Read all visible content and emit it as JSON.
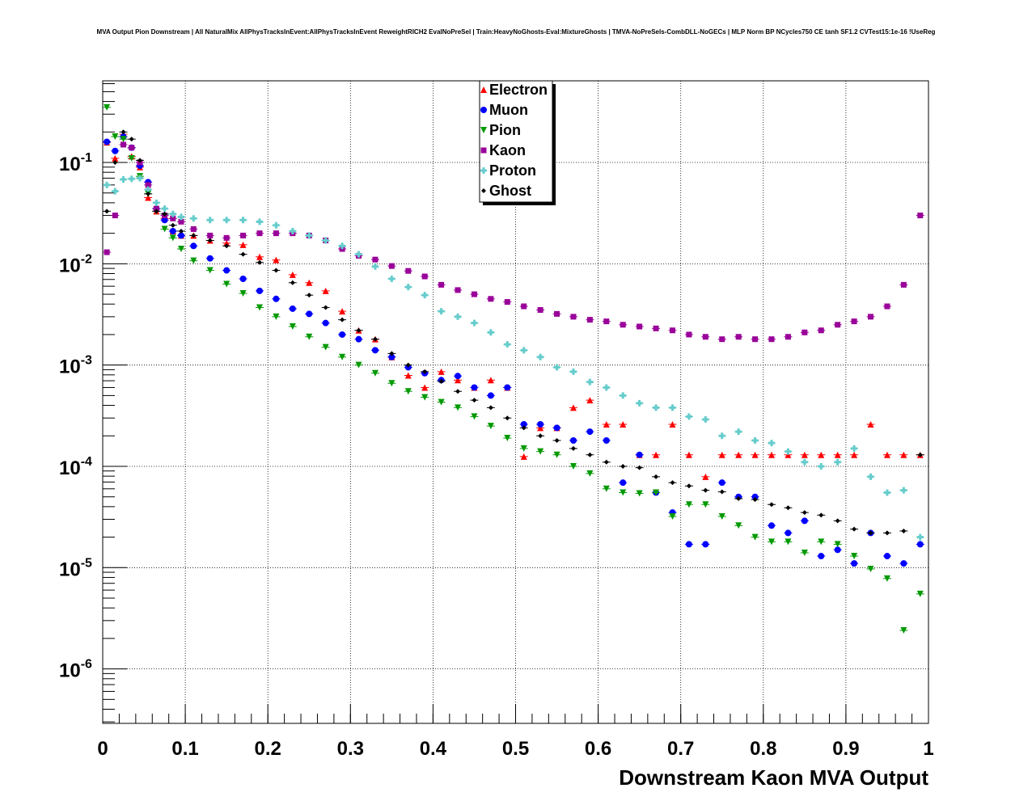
{
  "chart_data": {
    "type": "scatter",
    "title": "MVA Output Pion Downstream | All NaturalMix AllPhysTracksInEvent:AllPhysTracksInEvent ReweightRICH2 EvalNoPreSel | Train:HeavyNoGhosts-Eval:MixtureGhosts | TMVA-NoPreSels-CombDLL-NoGECs | MLP Norm BP NCycles750 CE tanh SF1.2 CVTest15:1e-16 !UseReg",
    "xlabel": "Downstream Kaon MVA Output",
    "ylabel": "",
    "xlim": [
      0,
      1
    ],
    "ylim": [
      2.9e-07,
      0.64
    ],
    "yscale": "log",
    "grid": true,
    "legend_position": "top-center",
    "x_ticks": [
      "0",
      "0.1",
      "0.2",
      "0.3",
      "0.4",
      "0.5",
      "0.6",
      "0.7",
      "0.8",
      "0.9",
      "1"
    ],
    "y_ticks": [
      {
        "base": "10",
        "exp": "-1"
      },
      {
        "base": "10",
        "exp": "-2"
      },
      {
        "base": "10",
        "exp": "-3"
      },
      {
        "base": "10",
        "exp": "-4"
      },
      {
        "base": "10",
        "exp": "-5"
      },
      {
        "base": "10",
        "exp": "-6"
      }
    ],
    "x": [
      0.005,
      0.015,
      0.025,
      0.035,
      0.045,
      0.055,
      0.065,
      0.075,
      0.085,
      0.095,
      0.11,
      0.13,
      0.15,
      0.17,
      0.19,
      0.21,
      0.23,
      0.25,
      0.27,
      0.29,
      0.31,
      0.33,
      0.35,
      0.37,
      0.39,
      0.41,
      0.43,
      0.45,
      0.47,
      0.49,
      0.51,
      0.53,
      0.55,
      0.57,
      0.59,
      0.61,
      0.63,
      0.65,
      0.67,
      0.69,
      0.71,
      0.73,
      0.75,
      0.77,
      0.79,
      0.81,
      0.83,
      0.85,
      0.87,
      0.89,
      0.91,
      0.93,
      0.95,
      0.97,
      0.99
    ],
    "series": [
      {
        "name": "Electron",
        "color": "#ff0000",
        "marker": "triangle-up",
        "values": [
          0.158,
          0.11,
          0.19,
          0.115,
          0.09,
          0.045,
          0.033,
          0.028,
          0.021,
          0.019,
          0.019,
          0.017,
          0.016,
          0.0154,
          0.0117,
          0.0109,
          0.0078,
          0.0065,
          0.0054,
          0.0034,
          0.0022,
          0.0018,
          0.0012,
          0.00079,
          0.0006,
          0.00086,
          0.00071,
          0.0006,
          0.00071,
          0.0006,
          0.000125,
          0.00024,
          0.00024,
          0.00038,
          0.00045,
          0.00026,
          0.00026,
          0.00013,
          0.00013,
          0.00026,
          0.00013,
          7.9e-05,
          0.00013,
          0.00013,
          0.00013,
          0.00013,
          0.00013,
          0.00013,
          0.00013,
          0.00013,
          0.00013,
          0.00026,
          0.00013,
          0.00013,
          0.00013
        ]
      },
      {
        "name": "Muon",
        "color": "#0000ff",
        "marker": "circle",
        "values": [
          0.16,
          0.13,
          0.18,
          0.14,
          0.093,
          0.064,
          0.035,
          0.027,
          0.021,
          0.019,
          0.015,
          0.0113,
          0.0086,
          0.0071,
          0.0054,
          0.0045,
          0.0036,
          0.0032,
          0.0026,
          0.002,
          0.0018,
          0.0014,
          0.0012,
          0.00095,
          0.00083,
          0.00071,
          0.00078,
          0.0006,
          0.0005,
          0.0006,
          0.00026,
          0.00026,
          0.00024,
          0.00018,
          0.00022,
          0.00018,
          6.9e-05,
          0.00013,
          5.5e-05,
          3.5e-05,
          1.7e-05,
          1.7e-05,
          6.9e-05,
          5e-05,
          5e-05,
          2.6e-05,
          2.2e-05,
          2.9e-05,
          1.3e-05,
          1.5e-05,
          1.1e-05,
          2.2e-05,
          1.3e-05,
          1.1e-05,
          1.7e-05
        ]
      },
      {
        "name": "Pion",
        "color": "#009900",
        "marker": "triangle-down",
        "values": [
          0.35,
          0.18,
          0.17,
          0.11,
          0.073,
          0.049,
          0.033,
          0.022,
          0.018,
          0.014,
          0.0107,
          0.0086,
          0.0063,
          0.0051,
          0.0037,
          0.003,
          0.0024,
          0.0019,
          0.0015,
          0.0012,
          0.001,
          0.00083,
          0.00066,
          0.00055,
          0.00048,
          0.00043,
          0.00038,
          0.00031,
          0.00025,
          0.00019,
          0.00015,
          0.00014,
          0.00013,
          0.0001,
          8.5e-05,
          6e-05,
          5.5e-05,
          5.4e-05,
          5.5e-05,
          3.2e-05,
          4.2e-05,
          4.2e-05,
          3.2e-05,
          2.6e-05,
          2e-05,
          1.8e-05,
          1.8e-05,
          1.4e-05,
          1.8e-05,
          1.7e-05,
          1.3e-05,
          9.7e-06,
          7.8e-06,
          2.4e-06,
          5.5e-06
        ]
      },
      {
        "name": "Kaon",
        "color": "#990099",
        "marker": "square",
        "values": [
          0.013,
          0.03,
          0.15,
          0.14,
          0.1,
          0.06,
          0.035,
          0.03,
          0.028,
          0.026,
          0.022,
          0.019,
          0.018,
          0.019,
          0.02,
          0.02,
          0.02,
          0.019,
          0.017,
          0.014,
          0.012,
          0.011,
          0.0095,
          0.0085,
          0.0075,
          0.0062,
          0.0055,
          0.005,
          0.0045,
          0.0042,
          0.0038,
          0.0035,
          0.0032,
          0.003,
          0.0028,
          0.0027,
          0.0025,
          0.0024,
          0.0023,
          0.0022,
          0.002,
          0.0019,
          0.0018,
          0.0019,
          0.0018,
          0.0018,
          0.0019,
          0.0021,
          0.0022,
          0.0025,
          0.0027,
          0.003,
          0.0038,
          0.0062,
          0.03
        ]
      },
      {
        "name": "Proton",
        "color": "#66cccc",
        "marker": "cross",
        "values": [
          0.06,
          0.052,
          0.068,
          0.069,
          0.07,
          0.054,
          0.04,
          0.035,
          0.031,
          0.029,
          0.028,
          0.027,
          0.027,
          0.027,
          0.026,
          0.024,
          0.021,
          0.019,
          0.017,
          0.015,
          0.0124,
          0.0094,
          0.0071,
          0.0059,
          0.0049,
          0.0034,
          0.003,
          0.0026,
          0.0021,
          0.0016,
          0.0014,
          0.0012,
          0.00095,
          0.00086,
          0.00068,
          0.0006,
          0.0005,
          0.00042,
          0.00038,
          0.00038,
          0.00031,
          0.00029,
          0.0002,
          0.00022,
          0.00018,
          0.00017,
          0.00014,
          0.00011,
          0.0001,
          0.00011,
          0.00015,
          7.9e-05,
          5.5e-05,
          5.8e-05,
          2e-05
        ]
      },
      {
        "name": "Ghost",
        "color": "#000000",
        "marker": "diamond",
        "values": [
          0.033,
          0.1,
          0.2,
          0.17,
          0.105,
          0.049,
          0.033,
          0.031,
          0.024,
          0.021,
          0.019,
          0.017,
          0.015,
          0.0124,
          0.0103,
          0.0086,
          0.0065,
          0.0049,
          0.0037,
          0.0028,
          0.0022,
          0.0018,
          0.0013,
          0.001,
          0.00086,
          0.00069,
          0.00055,
          0.00045,
          0.00038,
          0.0003,
          0.00024,
          0.0002,
          0.00018,
          0.00015,
          0.00013,
          0.00011,
          0.0001,
          9.7e-05,
          7.9e-05,
          6.9e-05,
          6.4e-05,
          5.8e-05,
          5.6e-05,
          4.8e-05,
          4.7e-05,
          4.2e-05,
          3.9e-05,
          3.5e-05,
          3.3e-05,
          2.9e-05,
          2.4e-05,
          2.2e-05,
          2.2e-05,
          2.3e-05,
          0.00013
        ]
      }
    ]
  }
}
